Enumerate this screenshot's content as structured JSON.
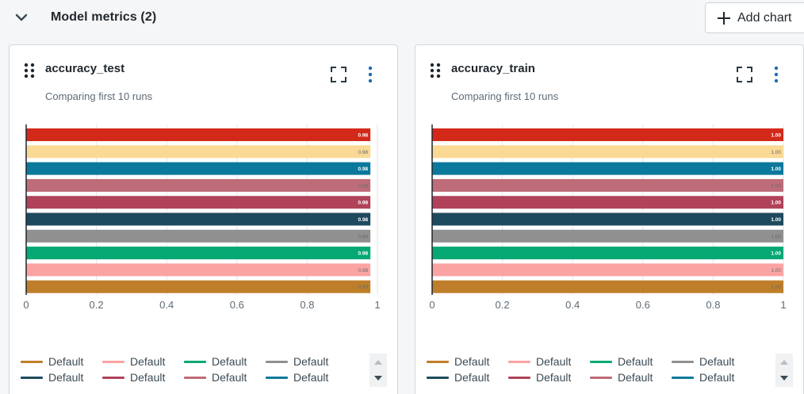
{
  "header": {
    "section_title": "Model metrics (2)",
    "add_chart_label": "Add chart",
    "icons": [
      "chevron-down-icon",
      "plus-icon"
    ]
  },
  "colors": {
    "icon": "#2a3a45",
    "kebab": "#1f6cb0",
    "axis_text": "#5f6b75",
    "grid": "#e3e6e9"
  },
  "cards": [
    {
      "title": "accuracy_test",
      "subtitle": "Comparing first 10 runs",
      "icons": [
        "drag-handle-icon",
        "expand-icon",
        "more-options-icon"
      ]
    },
    {
      "title": "accuracy_train",
      "subtitle": "Comparing first 10 runs",
      "icons": [
        "drag-handle-icon",
        "expand-icon",
        "more-options-icon"
      ]
    }
  ],
  "chart_data": [
    {
      "type": "bar",
      "orientation": "horizontal",
      "title": "accuracy_test",
      "subtitle": "Comparing first 10 runs",
      "xlim": [
        0,
        1
      ],
      "xticks": [
        "0",
        "0.2",
        "0.4",
        "0.6",
        "0.8",
        "1"
      ],
      "grid": true,
      "legend": "bottom",
      "series": [
        {
          "name": "Default",
          "value": 0.98,
          "label": "0.98",
          "color": "#d3291b"
        },
        {
          "name": "Default",
          "value": 0.98,
          "label": "0.98",
          "color": "#fad995"
        },
        {
          "name": "Default",
          "value": 0.98,
          "label": "0.98",
          "color": "#0a799c"
        },
        {
          "name": "Default",
          "value": 0.98,
          "label": "0.98",
          "color": "#bf6c79"
        },
        {
          "name": "Default",
          "value": 0.98,
          "label": "0.98",
          "color": "#b0435a"
        },
        {
          "name": "Default",
          "value": 0.98,
          "label": "0.98",
          "color": "#1e4a5e"
        },
        {
          "name": "Default",
          "value": 0.98,
          "label": "0.98",
          "color": "#909090"
        },
        {
          "name": "Default",
          "value": 0.98,
          "label": "0.98",
          "color": "#06a874"
        },
        {
          "name": "Default",
          "value": 0.98,
          "label": "0.98",
          "color": "#fba3a3"
        },
        {
          "name": "Default",
          "value": 0.98,
          "label": "0.98",
          "color": "#be7e2a"
        }
      ]
    },
    {
      "type": "bar",
      "orientation": "horizontal",
      "title": "accuracy_train",
      "subtitle": "Comparing first 10 runs",
      "xlim": [
        0,
        1
      ],
      "xticks": [
        "0",
        "0.2",
        "0.4",
        "0.6",
        "0.8",
        "1"
      ],
      "grid": true,
      "legend": "bottom",
      "series": [
        {
          "name": "Default",
          "value": 1.0,
          "label": "1.00",
          "color": "#d3291b"
        },
        {
          "name": "Default",
          "value": 1.0,
          "label": "1.00",
          "color": "#fad995"
        },
        {
          "name": "Default",
          "value": 1.0,
          "label": "1.00",
          "color": "#0a799c"
        },
        {
          "name": "Default",
          "value": 1.0,
          "label": "1.00",
          "color": "#bf6c79"
        },
        {
          "name": "Default",
          "value": 1.0,
          "label": "1.00",
          "color": "#b0435a"
        },
        {
          "name": "Default",
          "value": 1.0,
          "label": "1.00",
          "color": "#1e4a5e"
        },
        {
          "name": "Default",
          "value": 1.0,
          "label": "1.00",
          "color": "#909090"
        },
        {
          "name": "Default",
          "value": 1.0,
          "label": "1.00",
          "color": "#06a874"
        },
        {
          "name": "Default",
          "value": 1.0,
          "label": "1.00",
          "color": "#fba3a3"
        },
        {
          "name": "Default",
          "value": 1.0,
          "label": "1.00",
          "color": "#be7e2a"
        }
      ]
    }
  ],
  "legend": {
    "items": [
      {
        "label": "Default",
        "color": "#be7e2a"
      },
      {
        "label": "Default",
        "color": "#fba3a3"
      },
      {
        "label": "Default",
        "color": "#06a874"
      },
      {
        "label": "Default",
        "color": "#909090"
      },
      {
        "label": "Default",
        "color": "#1e4a5e"
      },
      {
        "label": "Default",
        "color": "#b0435a"
      },
      {
        "label": "Default",
        "color": "#bf6c79"
      },
      {
        "label": "Default",
        "color": "#0a799c"
      }
    ]
  }
}
